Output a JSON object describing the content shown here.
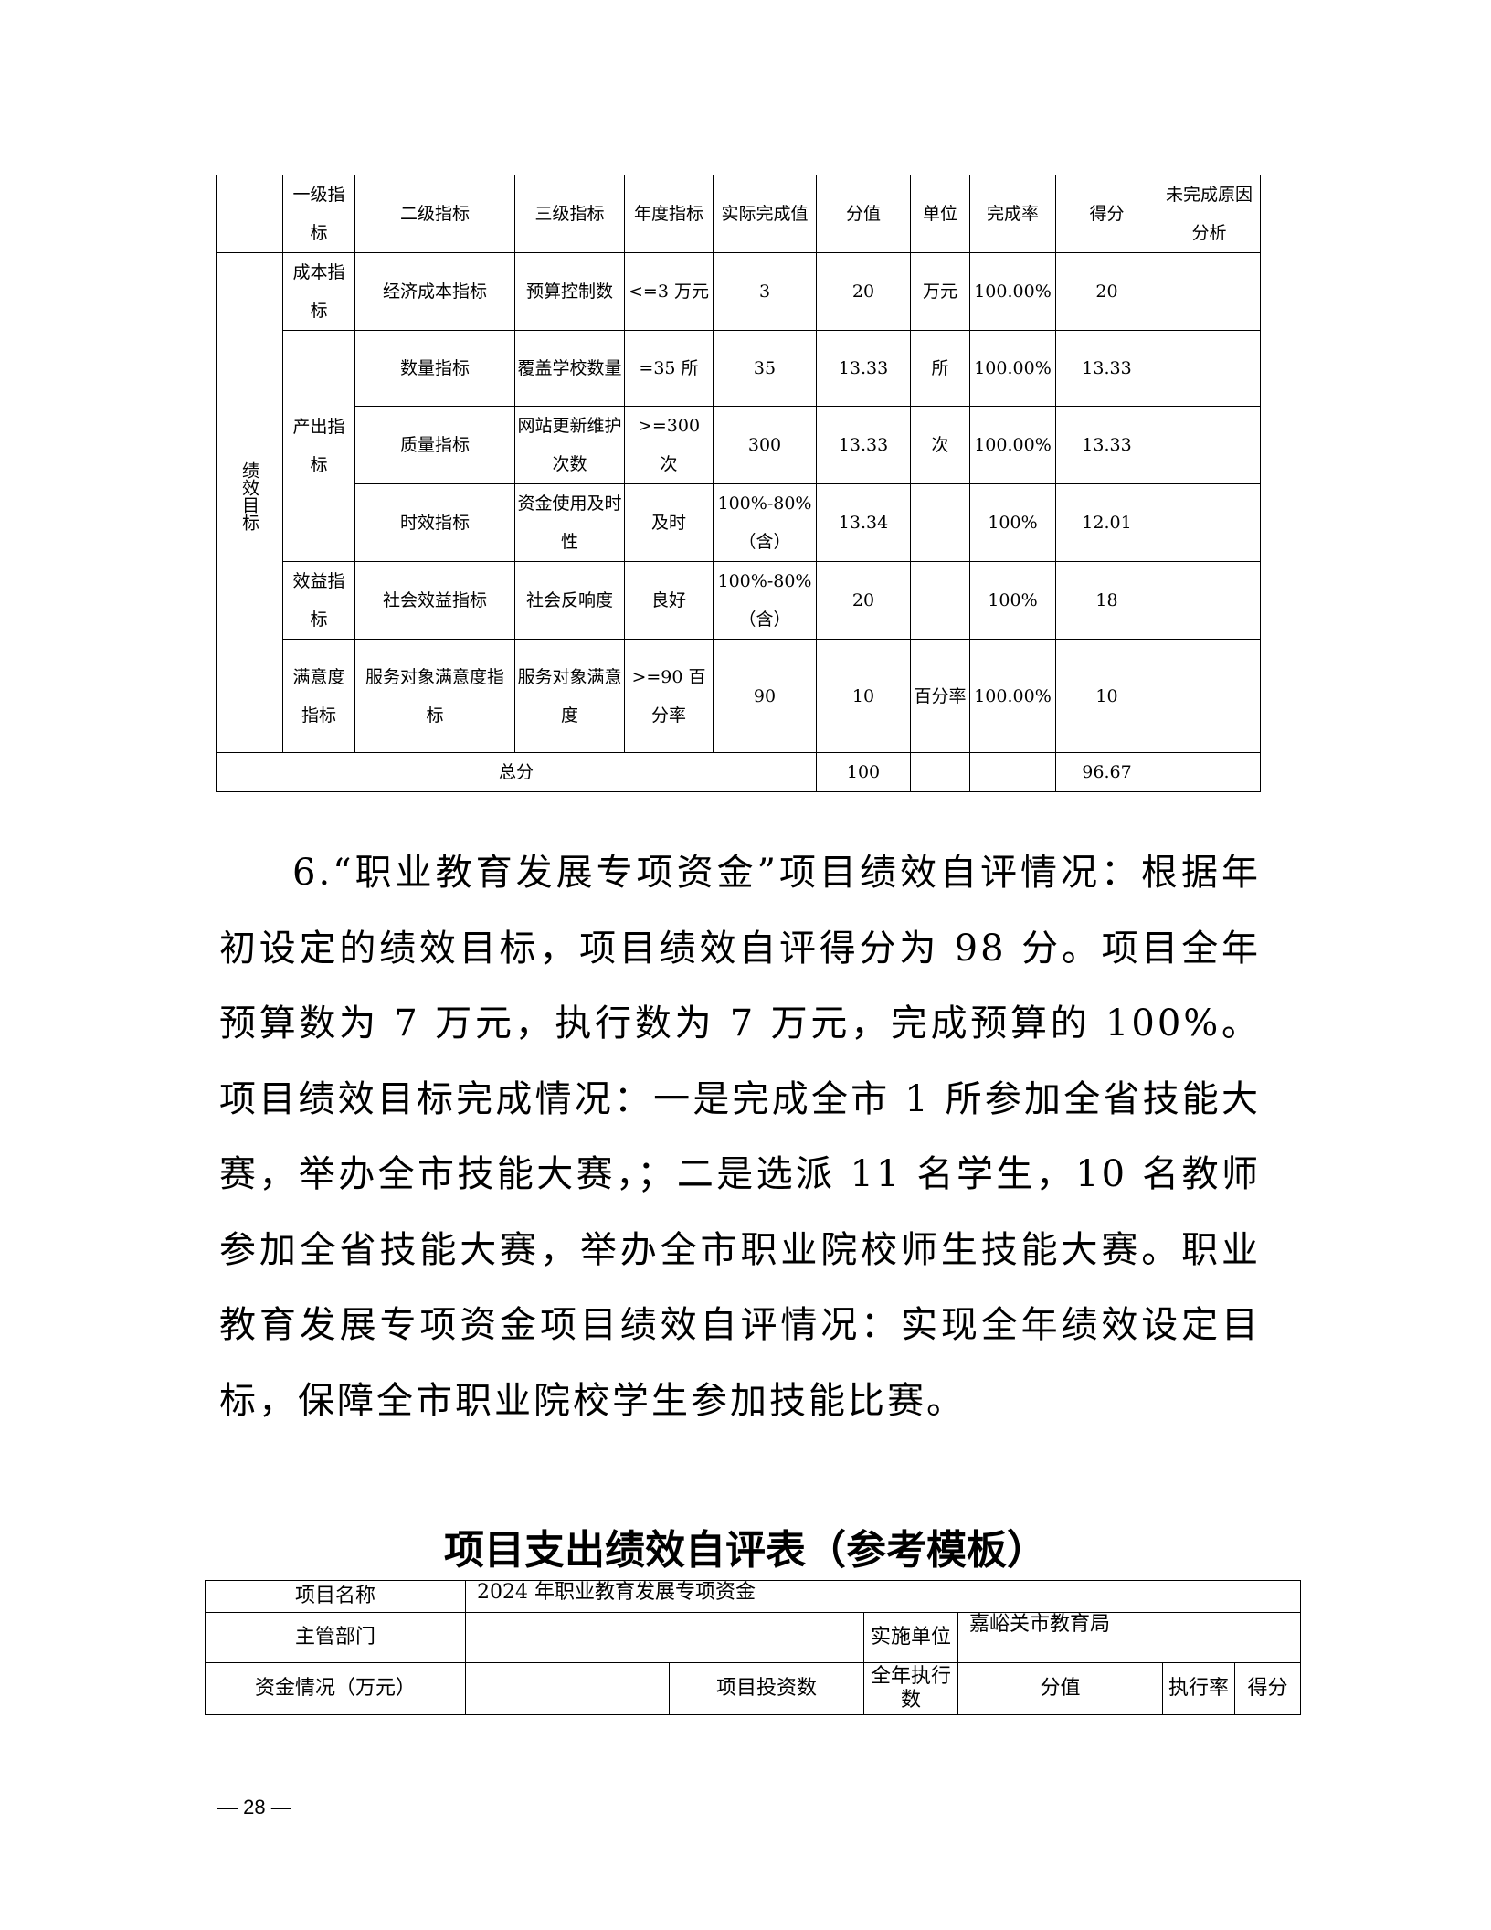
{
  "table1": {
    "headers": [
      "",
      "一级指标",
      "二级指标",
      "三级指标",
      "年度指标",
      "实际完成值",
      "分值",
      "单位",
      "完成率",
      "得分",
      "未完成原因分析"
    ],
    "group_label": "绩效目标",
    "rows": [
      {
        "l1": "成本指标",
        "l2": "经济成本指标",
        "l3": "预算控制数",
        "target": "<=3 万元",
        "actual": "3",
        "score_value": "20",
        "unit": "万元",
        "rate": "100.00%",
        "score": "20",
        "reason": ""
      },
      {
        "l1": "产出指标",
        "l2": "数量指标",
        "l3": "覆盖学校数量",
        "target": "=35 所",
        "actual": "35",
        "score_value": "13.33",
        "unit": "所",
        "rate": "100.00%",
        "score": "13.33",
        "reason": ""
      },
      {
        "l2": "质量指标",
        "l3": "网站更新维护次数",
        "target": ">=300 次",
        "actual": "300",
        "score_value": "13.33",
        "unit": "次",
        "rate": "100.00%",
        "score": "13.33",
        "reason": ""
      },
      {
        "l2": "时效指标",
        "l3": "资金使用及时性",
        "target": "及时",
        "actual": "100%-80%（含）",
        "score_value": "13.34",
        "unit": "",
        "rate": "100%",
        "score": "12.01",
        "reason": ""
      },
      {
        "l1": "效益指标",
        "l2": "社会效益指标",
        "l3": "社会反响度",
        "target": "良好",
        "actual": "100%-80%（含）",
        "score_value": "20",
        "unit": "",
        "rate": "100%",
        "score": "18",
        "reason": ""
      },
      {
        "l1": "满意度指标",
        "l2": "服务对象满意度指标",
        "l3": "服务对象满意度",
        "target": ">=90 百分率",
        "actual": "90",
        "score_value": "10",
        "unit": "百分率",
        "rate": "100.00%",
        "score": "10",
        "reason": ""
      }
    ],
    "total": {
      "label": "总分",
      "score_value": "100",
      "score": "96.67"
    }
  },
  "paragraph": "6.“职业教育发展专项资金”项目绩效自评情况：根据年初设定的绩效目标，项目绩效自评得分为 98 分。项目全年预算数为 7 万元，执行数为 7 万元，完成预算的 100%。项目绩效目标完成情况：一是完成全市 1 所参加全省技能大赛，举办全市技能大赛，；二是选派 11 名学生，10 名教师参加全省技能大赛，举办全市职业院校师生技能大赛。职业教育发展专项资金项目绩效自评情况：实现全年绩效设定目标，保障全市职业院校学生参加技能比赛。",
  "table2": {
    "title": "项目支出绩效自评表（参考模板）",
    "project_name_label": "项目名称",
    "project_name": "2024 年职业教育发展专项资金",
    "dept_label": "主管部门",
    "impl_unit_label": "实施单位",
    "impl_unit": "嘉峪关市教育局",
    "funds_label": "资金情况（万元）",
    "investment_label": "项目投资数",
    "annual_exec_label": "全年执行数",
    "score_value_label": "分值",
    "exec_rate_label": "执行率",
    "score_label": "得分"
  },
  "page_number": "— 28 —"
}
